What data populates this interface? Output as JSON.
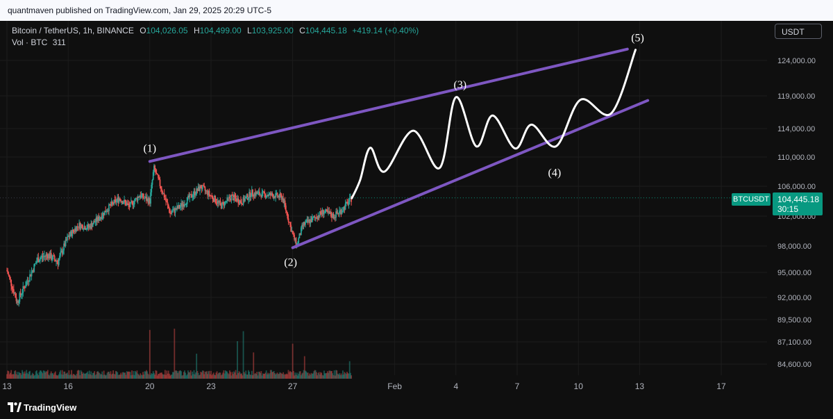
{
  "header": {
    "published": "quantmaven published on TradingView.com, Jan 29, 2025 20:29 UTC-5"
  },
  "legend": {
    "symbol": "Bitcoin / TetherUS, 1h, BINANCE",
    "o_key": "O",
    "o": "104,026.05",
    "h_key": "H",
    "h": "104,499.00",
    "l_key": "L",
    "l": "103,925.00",
    "c_key": "C",
    "c": "104,445.18",
    "change": "+419.14 (+0.40%)",
    "vol_label": "Vol · BTC",
    "vol": "311"
  },
  "currency": "USDT",
  "price_badge": {
    "symbol": "BTCUSDT",
    "price": "104,445.18",
    "countdown": "30:15"
  },
  "colors": {
    "up": "#26a69a",
    "down": "#ef5350",
    "channel": "#7e57c2",
    "projection": "#ffffff",
    "accent": "#089981"
  },
  "brand": "TradingView",
  "chart_data": {
    "type": "candlestick",
    "yaxis_ticks": [
      124000,
      119000,
      114000,
      110000,
      106000,
      102000,
      98000,
      95000,
      92000,
      89500,
      87100,
      84600
    ],
    "ytick_labels": [
      "124,000.00",
      "119,000.00",
      "114,000.00",
      "110,000.00",
      "106,000.00",
      "102,000.00",
      "98,000.00",
      "95,000.00",
      "92,000.00",
      "89,500.00",
      "87,100.00",
      "84,600.00"
    ],
    "xaxis_ticks": [
      {
        "label": "13",
        "day": 13
      },
      {
        "label": "16",
        "day": 16
      },
      {
        "label": "20",
        "day": 20
      },
      {
        "label": "23",
        "day": 23
      },
      {
        "label": "27",
        "day": 27
      },
      {
        "label": "Feb",
        "day": 32
      },
      {
        "label": "4",
        "day": 35
      },
      {
        "label": "7",
        "day": 38
      },
      {
        "label": "10",
        "day": 41
      },
      {
        "label": "13",
        "day": 44
      },
      {
        "label": "17",
        "day": 48
      }
    ],
    "price_path": [
      {
        "day": 13.0,
        "price": 95200
      },
      {
        "day": 13.5,
        "price": 91500
      },
      {
        "day": 14.0,
        "price": 94000
      },
      {
        "day": 14.5,
        "price": 96500
      },
      {
        "day": 15.0,
        "price": 97000
      },
      {
        "day": 15.5,
        "price": 96200
      },
      {
        "day": 16.0,
        "price": 99200
      },
      {
        "day": 16.5,
        "price": 100800
      },
      {
        "day": 17.0,
        "price": 100500
      },
      {
        "day": 17.5,
        "price": 101700
      },
      {
        "day": 18.0,
        "price": 103200
      },
      {
        "day": 18.5,
        "price": 104400
      },
      {
        "day": 19.0,
        "price": 103300
      },
      {
        "day": 19.5,
        "price": 104800
      },
      {
        "day": 20.0,
        "price": 104000
      },
      {
        "day": 20.2,
        "price": 108500
      },
      {
        "day": 20.5,
        "price": 106200
      },
      {
        "day": 21.0,
        "price": 102400
      },
      {
        "day": 21.5,
        "price": 103300
      },
      {
        "day": 22.0,
        "price": 104600
      },
      {
        "day": 22.5,
        "price": 105900
      },
      {
        "day": 23.0,
        "price": 104700
      },
      {
        "day": 23.5,
        "price": 103400
      },
      {
        "day": 24.0,
        "price": 104600
      },
      {
        "day": 24.5,
        "price": 103900
      },
      {
        "day": 25.0,
        "price": 105100
      },
      {
        "day": 25.5,
        "price": 104900
      },
      {
        "day": 26.0,
        "price": 104800
      },
      {
        "day": 26.5,
        "price": 104500
      },
      {
        "day": 27.0,
        "price": 99500
      },
      {
        "day": 27.2,
        "price": 98100
      },
      {
        "day": 27.5,
        "price": 100800
      },
      {
        "day": 28.0,
        "price": 101600
      },
      {
        "day": 28.5,
        "price": 102600
      },
      {
        "day": 29.0,
        "price": 102000
      },
      {
        "day": 29.4,
        "price": 102800
      },
      {
        "day": 29.9,
        "price": 104400
      }
    ],
    "volume_spikes": [
      {
        "day": 20.0,
        "vol": 3.9
      },
      {
        "day": 21.2,
        "vol": 4.0
      },
      {
        "day": 22.3,
        "vol": 2.0
      },
      {
        "day": 24.3,
        "vol": 3.0
      },
      {
        "day": 24.6,
        "vol": 3.8
      },
      {
        "day": 25.1,
        "vol": 2.1
      },
      {
        "day": 27.0,
        "vol": 2.8
      },
      {
        "day": 27.6,
        "vol": 1.8
      },
      {
        "day": 29.8,
        "vol": 1.4
      }
    ],
    "channel_upper": [
      {
        "day": 20.0,
        "price": 109400
      },
      {
        "day": 43.4,
        "price": 125600
      }
    ],
    "channel_lower": [
      {
        "day": 27.0,
        "price": 97800
      },
      {
        "day": 44.4,
        "price": 118300
      }
    ],
    "projection": [
      {
        "day": 29.9,
        "price": 104400
      },
      {
        "day": 30.3,
        "price": 106800
      },
      {
        "day": 30.8,
        "price": 111300
      },
      {
        "day": 31.5,
        "price": 108000
      },
      {
        "day": 32.9,
        "price": 113700
      },
      {
        "day": 34.2,
        "price": 108500
      },
      {
        "day": 35.0,
        "price": 118800
      },
      {
        "day": 36.0,
        "price": 111500
      },
      {
        "day": 36.8,
        "price": 116000
      },
      {
        "day": 37.9,
        "price": 111200
      },
      {
        "day": 38.7,
        "price": 114600
      },
      {
        "day": 39.9,
        "price": 111500
      },
      {
        "day": 41.1,
        "price": 118400
      },
      {
        "day": 42.6,
        "price": 116300
      },
      {
        "day": 43.8,
        "price": 125500
      }
    ],
    "waves": [
      {
        "label": "(1)",
        "day": 20.0,
        "price": 109400
      },
      {
        "label": "(2)",
        "day": 27.0,
        "price": 97800
      },
      {
        "label": "(3)",
        "day": 35.0,
        "price": 119000
      },
      {
        "label": "(4)",
        "day": 39.9,
        "price": 111500
      },
      {
        "label": "(5)",
        "day": 43.8,
        "price": 125500
      }
    ]
  }
}
